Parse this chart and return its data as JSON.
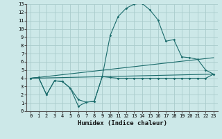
{
  "xlabel": "Humidex (Indice chaleur)",
  "background_color": "#cce8e8",
  "grid_color": "#aacccc",
  "line_color": "#1a6b6b",
  "xlim": [
    -0.5,
    23.5
  ],
  "ylim": [
    0,
    13
  ],
  "xticks": [
    0,
    1,
    2,
    3,
    4,
    5,
    6,
    7,
    8,
    9,
    10,
    11,
    12,
    13,
    14,
    15,
    16,
    17,
    18,
    19,
    20,
    21,
    22,
    23
  ],
  "yticks": [
    0,
    1,
    2,
    3,
    4,
    5,
    6,
    7,
    8,
    9,
    10,
    11,
    12,
    13
  ],
  "curve_x": [
    0,
    1,
    2,
    3,
    4,
    5,
    6,
    7,
    8,
    9,
    10,
    11,
    12,
    13,
    14,
    15,
    16,
    17,
    18,
    19,
    20,
    21,
    22,
    23
  ],
  "curve_y": [
    4.0,
    4.1,
    2.0,
    3.7,
    3.6,
    2.8,
    0.6,
    1.1,
    1.2,
    4.2,
    9.2,
    11.5,
    12.5,
    13.0,
    13.1,
    12.3,
    11.1,
    8.5,
    8.7,
    6.6,
    6.5,
    6.3,
    5.0,
    4.5
  ],
  "flat1_x": [
    0,
    1,
    2,
    3,
    4,
    5,
    6,
    7,
    8,
    9,
    10,
    11,
    12,
    13,
    14,
    15,
    16,
    17,
    18,
    19,
    20,
    21,
    22,
    23
  ],
  "flat1_y": [
    4.0,
    4.1,
    2.0,
    3.7,
    3.6,
    2.8,
    1.4,
    1.1,
    1.2,
    4.2,
    4.1,
    4.0,
    4.0,
    4.0,
    4.0,
    4.0,
    4.0,
    4.0,
    4.0,
    4.0,
    4.0,
    4.0,
    4.0,
    4.5
  ],
  "line2_x": [
    0,
    23
  ],
  "line2_y": [
    4.0,
    6.5
  ],
  "line3_x": [
    0,
    23
  ],
  "line3_y": [
    4.0,
    4.5
  ]
}
